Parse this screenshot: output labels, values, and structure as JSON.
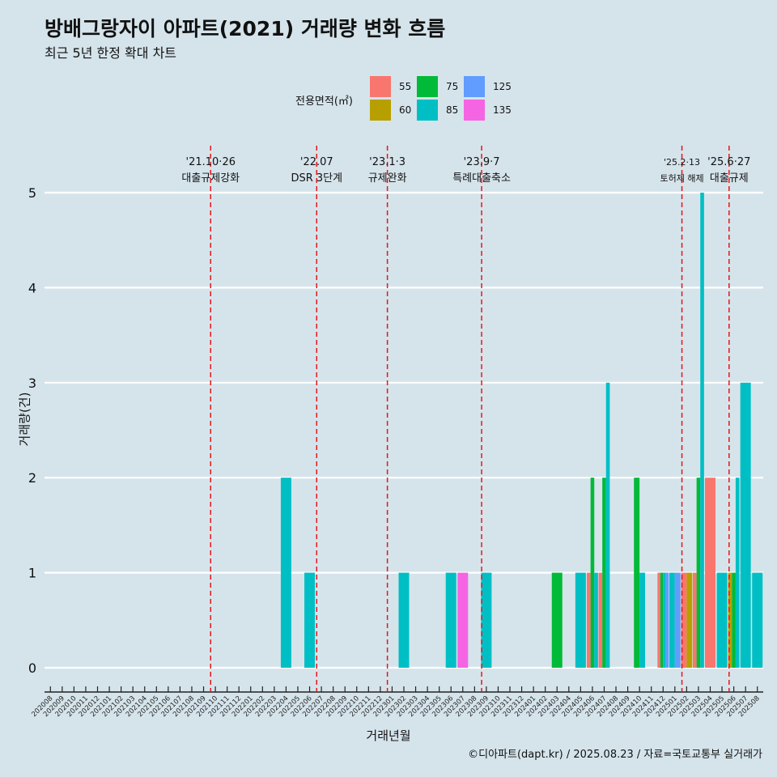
{
  "header": {
    "title": "방배그랑자이 아파트(2021) 거래량 변화 흐름",
    "subtitle": "최근 5년 한정 확대 차트"
  },
  "caption": "©디아파트(dapt.kr) / 2025.08.23 / 자료=국토교통부 실거래가",
  "legend": {
    "title": "전용면적(㎡)",
    "items": [
      {
        "label": "55",
        "color": "#F8766D"
      },
      {
        "label": "60",
        "color": "#B79F00"
      },
      {
        "label": "75",
        "color": "#00BA38"
      },
      {
        "label": "85",
        "color": "#00BFC4"
      },
      {
        "label": "125",
        "color": "#619CFF"
      },
      {
        "label": "135",
        "color": "#F564E3"
      }
    ]
  },
  "chart_data": {
    "type": "bar",
    "xlabel": "거래년월",
    "ylabel": "거래량(건)",
    "ylim": [
      0,
      5
    ],
    "yticks": [
      0,
      1,
      2,
      3,
      4,
      5
    ],
    "grid": true,
    "legend_position": "top",
    "categories": [
      "202008",
      "202009",
      "202010",
      "202011",
      "202012",
      "202101",
      "202102",
      "202103",
      "202104",
      "202105",
      "202106",
      "202107",
      "202108",
      "202109",
      "202110",
      "202111",
      "202112",
      "202201",
      "202202",
      "202203",
      "202204",
      "202205",
      "202206",
      "202207",
      "202208",
      "202209",
      "202210",
      "202211",
      "202212",
      "202301",
      "202302",
      "202303",
      "202304",
      "202305",
      "202306",
      "202307",
      "202308",
      "202309",
      "202310",
      "202311",
      "202312",
      "202401",
      "202402",
      "202403",
      "202404",
      "202405",
      "202406",
      "202407",
      "202408",
      "202409",
      "202410",
      "202411",
      "202412",
      "202501",
      "202502",
      "202503",
      "202504",
      "202505",
      "202506",
      "202507",
      "202508"
    ],
    "series": [
      {
        "name": "55",
        "values": [
          0,
          0,
          0,
          0,
          0,
          0,
          0,
          0,
          0,
          0,
          0,
          0,
          0,
          0,
          0,
          0,
          0,
          0,
          0,
          0,
          0,
          0,
          0,
          0,
          0,
          0,
          0,
          0,
          0,
          0,
          0,
          0,
          0,
          0,
          0,
          0,
          0,
          0,
          0,
          0,
          0,
          0,
          0,
          0,
          0,
          0,
          1,
          1,
          0,
          0,
          0,
          0,
          1,
          0,
          1,
          1,
          2,
          0,
          0,
          0,
          0
        ]
      },
      {
        "name": "60",
        "values": [
          0,
          0,
          0,
          0,
          0,
          0,
          0,
          0,
          0,
          0,
          0,
          0,
          0,
          0,
          0,
          0,
          0,
          0,
          0,
          0,
          0,
          0,
          0,
          0,
          0,
          0,
          0,
          0,
          0,
          0,
          0,
          0,
          0,
          0,
          0,
          0,
          0,
          0,
          0,
          0,
          0,
          0,
          0,
          0,
          0,
          0,
          0,
          0,
          0,
          0,
          0,
          0,
          0,
          0,
          1,
          0,
          0,
          0,
          1,
          0,
          0
        ]
      },
      {
        "name": "75",
        "values": [
          0,
          0,
          0,
          0,
          0,
          0,
          0,
          0,
          0,
          0,
          0,
          0,
          0,
          0,
          0,
          0,
          0,
          0,
          0,
          0,
          0,
          0,
          0,
          0,
          0,
          0,
          0,
          0,
          0,
          0,
          0,
          0,
          0,
          0,
          0,
          0,
          0,
          0,
          0,
          0,
          0,
          0,
          0,
          1,
          0,
          0,
          2,
          2,
          0,
          0,
          2,
          0,
          1,
          0,
          0,
          2,
          0,
          0,
          1,
          0,
          0
        ]
      },
      {
        "name": "85",
        "values": [
          0,
          0,
          0,
          0,
          0,
          0,
          0,
          0,
          0,
          0,
          0,
          0,
          0,
          0,
          0,
          0,
          0,
          0,
          0,
          0,
          2,
          0,
          1,
          0,
          0,
          0,
          0,
          0,
          0,
          0,
          1,
          0,
          0,
          0,
          1,
          0,
          0,
          1,
          0,
          0,
          0,
          0,
          0,
          0,
          0,
          1,
          1,
          3,
          0,
          0,
          1,
          0,
          1,
          1,
          0,
          5,
          0,
          1,
          2,
          3,
          1
        ]
      },
      {
        "name": "125",
        "values": [
          0,
          0,
          0,
          0,
          0,
          0,
          0,
          0,
          0,
          0,
          0,
          0,
          0,
          0,
          0,
          0,
          0,
          0,
          0,
          0,
          0,
          0,
          0,
          0,
          0,
          0,
          0,
          0,
          0,
          0,
          0,
          0,
          0,
          0,
          0,
          0,
          0,
          0,
          0,
          0,
          0,
          0,
          0,
          0,
          0,
          0,
          0,
          0,
          0,
          0,
          0,
          0,
          1,
          1,
          0,
          0,
          0,
          0,
          0,
          0,
          0
        ]
      },
      {
        "name": "135",
        "values": [
          0,
          0,
          0,
          0,
          0,
          0,
          0,
          0,
          0,
          0,
          0,
          0,
          0,
          0,
          0,
          0,
          0,
          0,
          0,
          0,
          0,
          0,
          0,
          0,
          0,
          0,
          0,
          0,
          0,
          0,
          0,
          0,
          0,
          0,
          0,
          1,
          0,
          0,
          0,
          0,
          0,
          0,
          0,
          0,
          0,
          0,
          0,
          0,
          0,
          0,
          0,
          0,
          0,
          0,
          0,
          0,
          0,
          0,
          0,
          0,
          0
        ]
      }
    ],
    "annotations": [
      {
        "x": "202110",
        "date": "'21.10·26",
        "label": "대출규제강화"
      },
      {
        "x": "202207",
        "date": "'22.07",
        "label": "DSR 3단계"
      },
      {
        "x": "202301",
        "date": "'23.1·3",
        "label": "규제완화"
      },
      {
        "x": "202309",
        "date": "'23.9·7",
        "label": "특례대출축소"
      },
      {
        "x": "202502",
        "date": "'25.2·13",
        "label": "토허제 해제"
      },
      {
        "x": "202506",
        "date": "'25.6·27",
        "label": "대출규제"
      }
    ]
  }
}
